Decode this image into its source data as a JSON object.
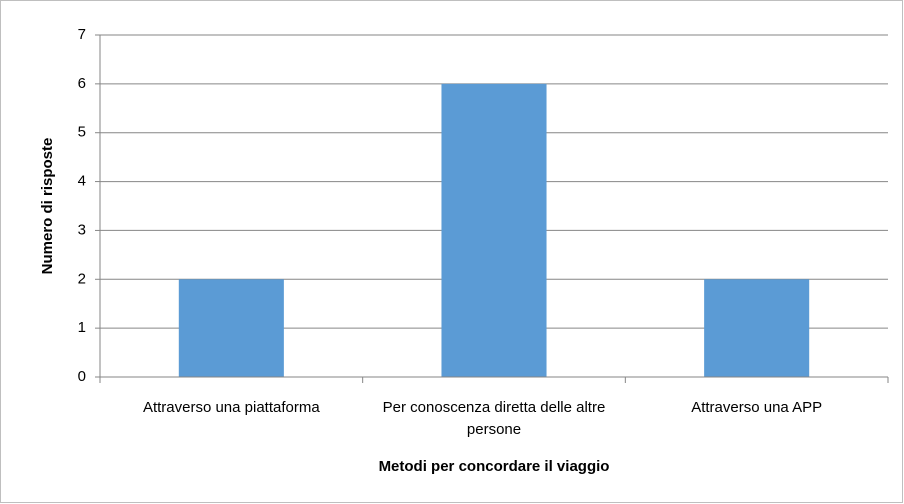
{
  "chart_data": {
    "type": "bar",
    "categories": [
      "Attraverso una piattaforma",
      "Per conoscenza diretta delle altre persone",
      "Attraverso una APP"
    ],
    "values": [
      2,
      6,
      2
    ],
    "color": "#5b9bd5",
    "xlabel": "Metodi per concordare il viaggio",
    "ylabel": "Numero di risposte",
    "ylim": [
      0,
      7
    ],
    "yticks": [
      0,
      1,
      2,
      3,
      4,
      5,
      6,
      7
    ],
    "grid": true
  }
}
